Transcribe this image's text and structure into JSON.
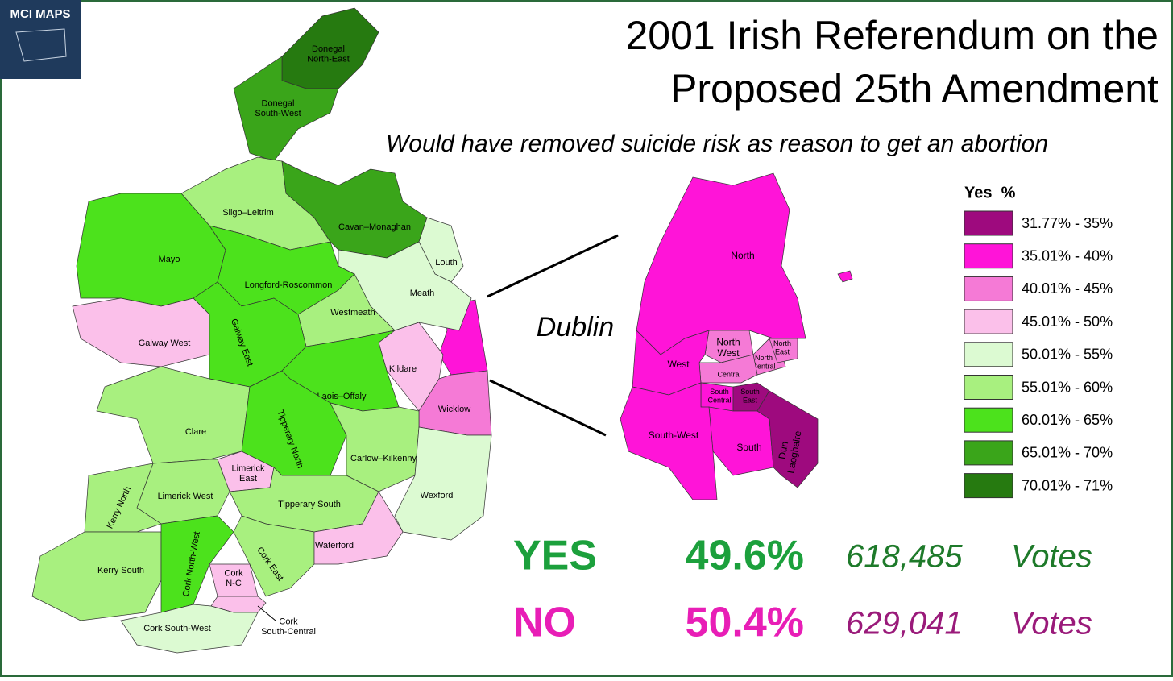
{
  "logo": "MCI MAPS",
  "title": [
    "2001 Irish Referendum on the",
    "Proposed 25th Amendment"
  ],
  "subtitle": "Would have removed suicide risk as reason to get an abortion",
  "legend": {
    "title": "Yes  %",
    "items": [
      {
        "label": "31.77% - 35%",
        "color": "#9e0a7e"
      },
      {
        "label": "35.01% - 40%",
        "color": "#ff14d8"
      },
      {
        "label": "40.01% - 45%",
        "color": "#f57ad6"
      },
      {
        "label": "45.01% - 50%",
        "color": "#fbc0ea"
      },
      {
        "label": "50.01% - 55%",
        "color": "#dcfad2"
      },
      {
        "label": "55.01% - 60%",
        "color": "#a8f07f"
      },
      {
        "label": "60.01% - 65%",
        "color": "#4ce21c"
      },
      {
        "label": "65.01% - 70%",
        "color": "#3aa51a"
      },
      {
        "label": "70.01% - 71%",
        "color": "#267a10"
      }
    ]
  },
  "regions": [
    {
      "lines": [
        "Donegal",
        "North-East"
      ],
      "color": "#267a10"
    },
    {
      "lines": [
        "Donegal",
        "South-West"
      ],
      "color": "#3aa51a"
    },
    {
      "lines": [
        "Sligo–Leitrim"
      ],
      "color": "#a8f07f"
    },
    {
      "lines": [
        "Cavan–Monaghan"
      ],
      "color": "#3aa51a"
    },
    {
      "lines": [
        "Mayo"
      ],
      "color": "#4ce21c"
    },
    {
      "lines": [
        "Longford-Roscommon"
      ],
      "color": "#4ce21c"
    },
    {
      "lines": [
        "Louth"
      ],
      "color": "#dcfad2"
    },
    {
      "lines": [
        "Meath"
      ],
      "color": "#dcfad2"
    },
    {
      "lines": [
        "Westmeath"
      ],
      "color": "#a8f07f"
    },
    {
      "lines": [
        "Galway West"
      ],
      "color": "#fbc0ea"
    },
    {
      "lines": [
        "Galway East"
      ],
      "color": "#4ce21c"
    },
    {
      "lines": [
        "Kildare"
      ],
      "color": "#fbc0ea"
    },
    {
      "lines": [
        "Laois–Offaly"
      ],
      "color": "#4ce21c"
    },
    {
      "lines": [
        "Wicklow"
      ],
      "color": "#f57ad6"
    },
    {
      "lines": [
        "Clare"
      ],
      "color": "#a8f07f"
    },
    {
      "lines": [
        "Tipperary North"
      ],
      "color": "#4ce21c"
    },
    {
      "lines": [
        "Limerick",
        "East"
      ],
      "color": "#fbc0ea"
    },
    {
      "lines": [
        "Carlow–Kilkenny"
      ],
      "color": "#a8f07f"
    },
    {
      "lines": [
        "Wexford"
      ],
      "color": "#dcfad2"
    },
    {
      "lines": [
        "Limerick West"
      ],
      "color": "#a8f07f"
    },
    {
      "lines": [
        "Tipperary South"
      ],
      "color": "#a8f07f"
    },
    {
      "lines": [
        "Kerry North"
      ],
      "color": "#a8f07f"
    },
    {
      "lines": [
        "Kerry South"
      ],
      "color": "#a8f07f"
    },
    {
      "lines": [
        "Cork North-West"
      ],
      "color": "#4ce21c"
    },
    {
      "lines": [
        "Cork East"
      ],
      "color": "#a8f07f"
    },
    {
      "lines": [
        "Waterford"
      ],
      "color": "#fbc0ea"
    },
    {
      "lines": [
        "Cork",
        "N-C"
      ],
      "color": "#fbc0ea"
    },
    {
      "lines": [
        "Cork",
        "South-Central"
      ],
      "color": "#fbc0ea"
    },
    {
      "lines": [
        "Cork South-West"
      ],
      "color": "#dcfad2"
    }
  ],
  "dublin": {
    "label": "Dublin",
    "regions": [
      {
        "lines": [
          "North"
        ],
        "color": "#ff14d8"
      },
      {
        "lines": [
          "North",
          "West"
        ],
        "color": "#f57ad6"
      },
      {
        "lines": [
          "North",
          "Central"
        ],
        "color": "#f57ad6"
      },
      {
        "lines": [
          "North",
          "East"
        ],
        "color": "#f57ad6"
      },
      {
        "lines": [
          "Central"
        ],
        "color": "#f57ad6"
      },
      {
        "lines": [
          "West"
        ],
        "color": "#ff14d8"
      },
      {
        "lines": [
          "South",
          "Central"
        ],
        "color": "#ff14d8"
      },
      {
        "lines": [
          "South",
          "East"
        ],
        "color": "#9e0a7e"
      },
      {
        "lines": [
          "South"
        ],
        "color": "#ff14d8"
      },
      {
        "lines": [
          "South-West"
        ],
        "color": "#ff14d8"
      },
      {
        "lines": [
          "Dun",
          "Laoghaire"
        ],
        "color": "#9e0a7e"
      }
    ]
  },
  "results": [
    {
      "answer": "YES",
      "percent": "49.6%",
      "votes": "618,485",
      "unit": "Votes",
      "color": "#1ca03c",
      "votes_color": "#1e7a2a"
    },
    {
      "answer": "NO",
      "percent": "50.4%",
      "votes": "629,041",
      "unit": "Votes",
      "color": "#e81eb6",
      "votes_color": "#9a1a7a"
    }
  ]
}
